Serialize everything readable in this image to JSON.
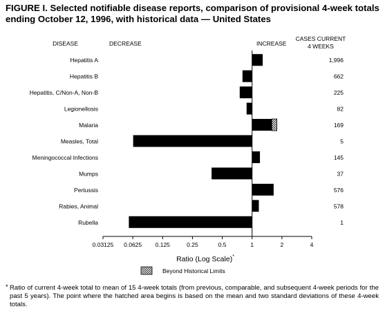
{
  "title": "FIGURE I. Selected notifiable disease reports, comparison of provisional 4-week totals ending October 12, 1996, with historical data — United States",
  "headers": {
    "disease": "DISEASE",
    "decrease": "DECREASE",
    "increase": "INCREASE",
    "cases_line1": "CASES CURRENT",
    "cases_line2": "4 WEEKS"
  },
  "legend": {
    "label": "Beyond Historical Limits"
  },
  "footnote": {
    "marker": "*",
    "text": "Ratio of current 4-week total to mean of 15 4-week totals (from previous, comparable, and subsequent 4-week periods for the past 5 years). The point where the hatched area begins is based on the mean and two standard deviations of these 4-week totals."
  },
  "colors": {
    "bar": "#000000",
    "hatch": "#000000",
    "background": "#ffffff"
  },
  "chart_data": {
    "type": "bar",
    "orientation": "horizontal",
    "xscale": "log2",
    "xlabel": "Ratio (Log Scale)",
    "xlabel_marker": "*",
    "xlim": [
      0.03125,
      4
    ],
    "xticks": [
      0.03125,
      0.0625,
      0.125,
      0.25,
      0.5,
      1,
      2,
      4
    ],
    "xtick_labels": [
      "0.03125",
      "0.0625",
      "0.125",
      "0.25",
      "0.5",
      "1",
      "2",
      "4"
    ],
    "baseline": 1,
    "categories": [
      "Hepatitis A",
      "Hepatitis B",
      "Hepatitis, C/Non-A, Non-B",
      "Legionellosis",
      "Malaria",
      "Measles, Total",
      "Meningococcal Infections",
      "Mumps",
      "Pertussis",
      "Rabies, Animal",
      "Rubella"
    ],
    "values": [
      1.28,
      0.8,
      0.75,
      0.88,
      1.78,
      0.063,
      1.2,
      0.39,
      1.65,
      1.17,
      0.057
    ],
    "beyond_limits_start": [
      null,
      null,
      null,
      null,
      1.58,
      null,
      null,
      null,
      null,
      null,
      null
    ],
    "cases_current_4_weeks": [
      "1,996",
      "662",
      "225",
      "82",
      "169",
      "5",
      "145",
      "37",
      "576",
      "578",
      "1"
    ]
  }
}
